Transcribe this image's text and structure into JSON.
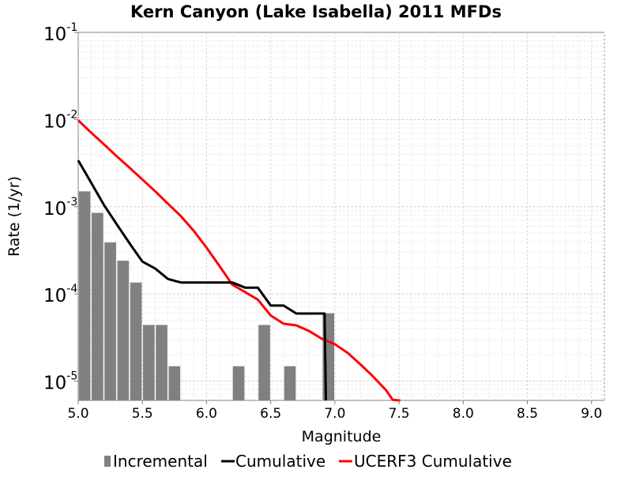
{
  "chart_data": {
    "type": "bar+line",
    "title": "Kern Canyon (Lake Isabella) 2011 MFDs",
    "xlabel": "Magnitude",
    "ylabel": "Rate (1/yr)",
    "xlim": [
      5.0,
      9.1
    ],
    "ylim": [
      6e-06,
      0.1
    ],
    "yscale": "log",
    "grid": true,
    "legend_position": "bottom",
    "x_ticks": [
      "5.0",
      "5.5",
      "6.0",
      "6.5",
      "7.0",
      "7.5",
      "8.0",
      "8.5",
      "9.0"
    ],
    "y_ticks": [
      {
        "base": "10",
        "exp": "-5",
        "value": 1e-05
      },
      {
        "base": "10",
        "exp": "-4",
        "value": 0.0001
      },
      {
        "base": "10",
        "exp": "-3",
        "value": 0.001
      },
      {
        "base": "10",
        "exp": "-2",
        "value": 0.01
      },
      {
        "base": "10",
        "exp": "-1",
        "value": 0.1
      }
    ],
    "series": [
      {
        "name": "Incremental",
        "kind": "bar",
        "color": "#808080",
        "x": [
          5.05,
          5.15,
          5.25,
          5.35,
          5.45,
          5.55,
          5.65,
          5.75,
          6.25,
          6.45,
          6.65,
          6.95
        ],
        "values": [
          0.0015,
          0.00085,
          0.00039,
          0.00024,
          0.000135,
          4.4e-05,
          4.4e-05,
          1.48e-05,
          1.48e-05,
          4.4e-05,
          1.48e-05,
          6e-05
        ]
      },
      {
        "name": "Cumulative",
        "kind": "line",
        "color": "#000000",
        "x": [
          5.0,
          5.1,
          5.2,
          5.3,
          5.4,
          5.5,
          5.6,
          5.7,
          5.8,
          5.9,
          6.0,
          6.1,
          6.2,
          6.3,
          6.4,
          6.5,
          6.6,
          6.7,
          6.8,
          6.9,
          6.92,
          6.93
        ],
        "values": [
          0.0034,
          0.0019,
          0.00105,
          0.00063,
          0.00038,
          0.000235,
          0.000195,
          0.000148,
          0.000135,
          0.000135,
          0.000135,
          0.000135,
          0.000135,
          0.000118,
          0.000118,
          7.35e-05,
          7.35e-05,
          5.95e-05,
          5.95e-05,
          5.95e-05,
          5.95e-05,
          6e-06
        ]
      },
      {
        "name": "UCERF3 Cumulative",
        "kind": "line",
        "color": "#ff0000",
        "x": [
          5.0,
          5.1,
          5.2,
          5.3,
          5.4,
          5.5,
          5.6,
          5.7,
          5.8,
          5.9,
          6.0,
          6.1,
          6.2,
          6.3,
          6.4,
          6.5,
          6.6,
          6.7,
          6.8,
          6.9,
          7.0,
          7.1,
          7.2,
          7.3,
          7.4,
          7.45,
          7.5,
          7.51
        ],
        "values": [
          0.0098,
          0.0071,
          0.0052,
          0.0038,
          0.0028,
          0.00205,
          0.0015,
          0.00108,
          0.00078,
          0.00053,
          0.00034,
          0.00021,
          0.000128,
          0.000105,
          8.6e-05,
          5.65e-05,
          4.55e-05,
          4.35e-05,
          3.75e-05,
          3.05e-05,
          2.65e-05,
          2.1e-05,
          1.55e-05,
          1.12e-05,
          7.8e-06,
          6.1e-06,
          5.3e-06,
          6e-06
        ]
      }
    ]
  }
}
